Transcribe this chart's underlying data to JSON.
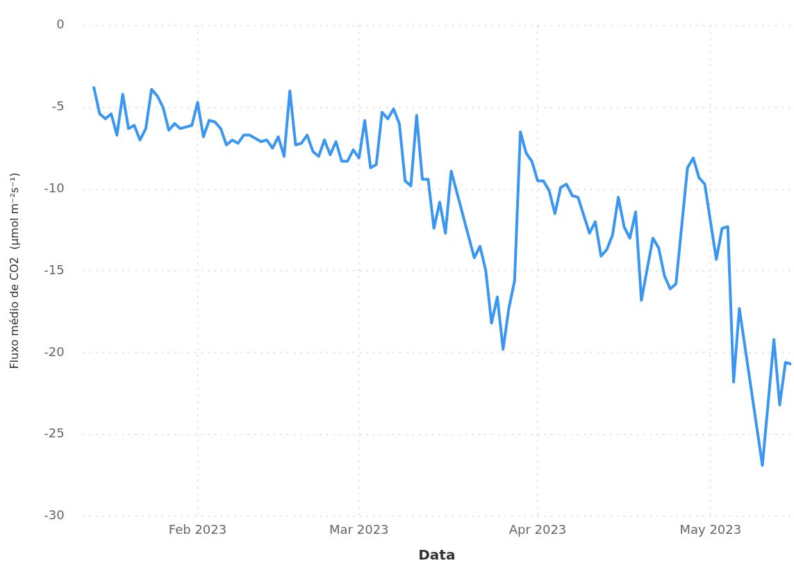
{
  "chart_data": {
    "type": "line",
    "xlabel": "Data",
    "ylabel": "Fluxo médio de CO2  (μmol m⁻²s⁻¹)",
    "x": [
      "2023-01-14",
      "2023-01-15",
      "2023-01-16",
      "2023-01-17",
      "2023-01-18",
      "2023-01-19",
      "2023-01-20",
      "2023-01-21",
      "2023-01-22",
      "2023-01-23",
      "2023-01-24",
      "2023-01-25",
      "2023-01-26",
      "2023-01-27",
      "2023-01-28",
      "2023-01-29",
      "2023-01-30",
      "2023-01-31",
      "2023-02-01",
      "2023-02-02",
      "2023-02-03",
      "2023-02-04",
      "2023-02-05",
      "2023-02-06",
      "2023-02-07",
      "2023-02-08",
      "2023-02-09",
      "2023-02-10",
      "2023-02-11",
      "2023-02-12",
      "2023-02-13",
      "2023-02-14",
      "2023-02-15",
      "2023-02-16",
      "2023-02-17",
      "2023-02-18",
      "2023-02-19",
      "2023-02-20",
      "2023-02-21",
      "2023-02-22",
      "2023-02-23",
      "2023-02-24",
      "2023-02-25",
      "2023-02-26",
      "2023-02-27",
      "2023-02-28",
      "2023-03-01",
      "2023-03-02",
      "2023-03-03",
      "2023-03-04",
      "2023-03-05",
      "2023-03-06",
      "2023-03-07",
      "2023-03-08",
      "2023-03-09",
      "2023-03-10",
      "2023-03-11",
      "2023-03-12",
      "2023-03-13",
      "2023-03-14",
      "2023-03-15",
      "2023-03-16",
      "2023-03-17",
      "2023-03-21",
      "2023-03-22",
      "2023-03-23",
      "2023-03-24",
      "2023-03-25",
      "2023-03-26",
      "2023-03-27",
      "2023-03-28",
      "2023-03-29",
      "2023-03-30",
      "2023-03-31",
      "2023-04-01",
      "2023-04-02",
      "2023-04-03",
      "2023-04-04",
      "2023-04-05",
      "2023-04-06",
      "2023-04-07",
      "2023-04-08",
      "2023-04-10",
      "2023-04-11",
      "2023-04-12",
      "2023-04-13",
      "2023-04-14",
      "2023-04-15",
      "2023-04-16",
      "2023-04-17",
      "2023-04-18",
      "2023-04-19",
      "2023-04-21",
      "2023-04-22",
      "2023-04-23",
      "2023-04-24",
      "2023-04-25",
      "2023-04-27",
      "2023-04-28",
      "2023-04-29",
      "2023-04-30",
      "2023-05-02",
      "2023-05-03",
      "2023-05-04",
      "2023-05-05",
      "2023-05-06",
      "2023-05-10",
      "2023-05-12",
      "2023-05-13",
      "2023-05-14",
      "2023-05-15"
    ],
    "series": [
      {
        "color": "#3a96f0",
        "values": [
          -3.8,
          -5.4,
          -5.7,
          -5.4,
          -6.7,
          -4.2,
          -6.3,
          -6.1,
          -7.0,
          -6.3,
          -3.9,
          -4.3,
          -5.0,
          -6.4,
          -6.0,
          -6.3,
          -6.2,
          -6.1,
          -4.7,
          -6.8,
          -5.8,
          -5.9,
          -6.3,
          -7.3,
          -7.0,
          -7.2,
          -6.7,
          -6.7,
          -6.9,
          -7.1,
          -7.0,
          -7.5,
          -6.8,
          -8.0,
          -4.0,
          -7.3,
          -7.2,
          -6.7,
          -7.7,
          -8.0,
          -7.0,
          -7.9,
          -7.1,
          -8.3,
          -8.3,
          -7.6,
          -8.1,
          -5.8,
          -8.7,
          -8.5,
          -5.3,
          -5.7,
          -5.1,
          -6.0,
          -9.5,
          -9.8,
          -5.5,
          -9.4,
          -9.4,
          -12.4,
          -10.8,
          -12.7,
          -8.9,
          -14.2,
          -13.5,
          -15.0,
          -18.2,
          -16.6,
          -19.8,
          -17.3,
          -15.6,
          -6.5,
          -7.8,
          -8.3,
          -9.5,
          -9.5,
          -10.1,
          -11.5,
          -9.9,
          -9.7,
          -10.4,
          -10.5,
          -12.7,
          -12.0,
          -14.1,
          -13.7,
          -12.8,
          -10.5,
          -12.3,
          -13.0,
          -11.4,
          -16.8,
          -13.0,
          -13.6,
          -15.3,
          -16.1,
          -15.8,
          -8.7,
          -8.1,
          -9.3,
          -9.7,
          -14.3,
          -12.4,
          -12.3,
          -21.8,
          -17.3,
          -26.9,
          -19.2,
          -23.2,
          -20.6,
          -20.7
        ]
      }
    ],
    "xlim": [
      "2023-01-12",
      "2023-05-15"
    ],
    "xticks": [
      {
        "value": "2023-02-01",
        "label": "Feb 2023"
      },
      {
        "value": "2023-03-01",
        "label": "Mar 2023"
      },
      {
        "value": "2023-04-01",
        "label": "Apr 2023"
      },
      {
        "value": "2023-05-01",
        "label": "May 2023"
      }
    ],
    "ylim": [
      -30,
      0
    ],
    "yticks": [
      -30,
      -25,
      -20,
      -15,
      -10,
      -5,
      0
    ],
    "grid": true,
    "legend": false,
    "marker": "none",
    "line_style": "solid"
  }
}
